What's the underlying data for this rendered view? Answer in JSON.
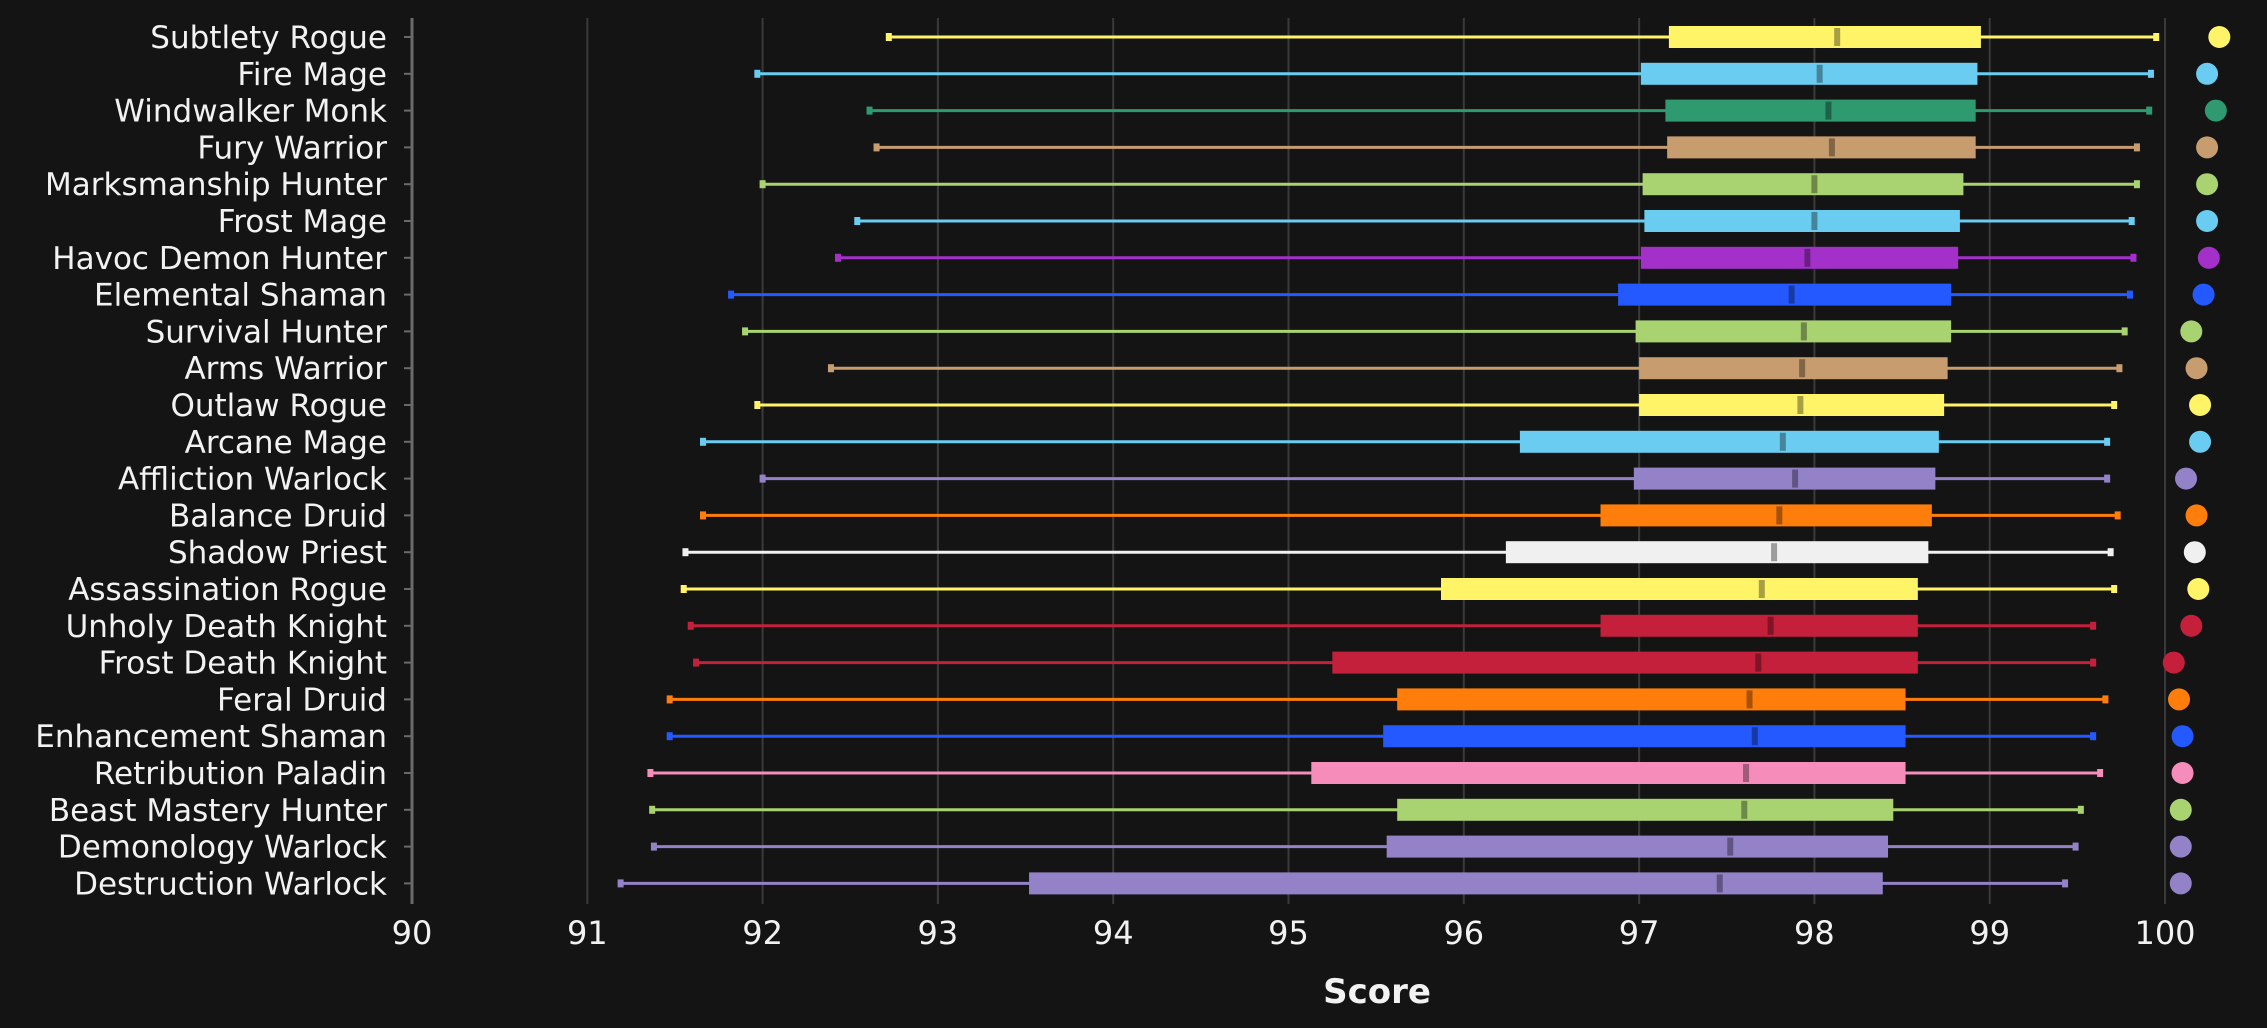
{
  "chart_data": {
    "type": "box",
    "orientation": "horizontal",
    "title": "",
    "xlabel": "Score",
    "ylabel": "",
    "xlim": [
      90,
      100
    ],
    "x_ticks": [
      "90",
      "91",
      "92",
      "93",
      "94",
      "95",
      "96",
      "97",
      "98",
      "99",
      "100"
    ],
    "grid": true,
    "background": "#141414",
    "categories": [
      "Subtlety Rogue",
      "Fire Mage",
      "Windwalker Monk",
      "Fury Warrior",
      "Marksmanship Hunter",
      "Frost Mage",
      "Havoc Demon Hunter",
      "Elemental Shaman",
      "Survival Hunter",
      "Arms Warrior",
      "Outlaw Rogue",
      "Arcane Mage",
      "Affliction Warlock",
      "Balance Druid",
      "Shadow Priest",
      "Assassination Rogue",
      "Unholy Death Knight",
      "Frost Death Knight",
      "Feral Druid",
      "Enhancement Shaman",
      "Retribution Paladin",
      "Beast Mastery Hunter",
      "Demonology Warlock",
      "Destruction Warlock"
    ],
    "series": [
      {
        "category": "Subtlety Rogue",
        "color": "#FFF468",
        "min": 92.72,
        "q1": 97.17,
        "median": 98.13,
        "q3": 98.95,
        "max": 99.95,
        "dot": 100.31
      },
      {
        "category": "Fire Mage",
        "color": "#69CCF0",
        "min": 91.97,
        "q1": 97.01,
        "median": 98.03,
        "q3": 98.93,
        "max": 99.92,
        "dot": 100.24
      },
      {
        "category": "Windwalker Monk",
        "color": "#2F9970",
        "min": 92.61,
        "q1": 97.15,
        "median": 98.08,
        "q3": 98.92,
        "max": 99.91,
        "dot": 100.29
      },
      {
        "category": "Fury Warrior",
        "color": "#C79C6E",
        "min": 92.65,
        "q1": 97.16,
        "median": 98.1,
        "q3": 98.92,
        "max": 99.84,
        "dot": 100.24
      },
      {
        "category": "Marksmanship Hunter",
        "color": "#A9D271",
        "min": 92.0,
        "q1": 97.02,
        "median": 98.0,
        "q3": 98.85,
        "max": 99.84,
        "dot": 100.24
      },
      {
        "category": "Frost Mage",
        "color": "#69CCF0",
        "min": 92.54,
        "q1": 97.03,
        "median": 98.0,
        "q3": 98.83,
        "max": 99.81,
        "dot": 100.24
      },
      {
        "category": "Havoc Demon Hunter",
        "color": "#A330C9",
        "min": 92.43,
        "q1": 97.01,
        "median": 97.96,
        "q3": 98.82,
        "max": 99.82,
        "dot": 100.25
      },
      {
        "category": "Elemental Shaman",
        "color": "#2459FF",
        "min": 91.82,
        "q1": 96.88,
        "median": 97.87,
        "q3": 98.78,
        "max": 99.8,
        "dot": 100.22
      },
      {
        "category": "Survival Hunter",
        "color": "#A9D271",
        "min": 91.9,
        "q1": 96.98,
        "median": 97.94,
        "q3": 98.78,
        "max": 99.77,
        "dot": 100.15
      },
      {
        "category": "Arms Warrior",
        "color": "#C79C6E",
        "min": 92.39,
        "q1": 97.0,
        "median": 97.93,
        "q3": 98.76,
        "max": 99.74,
        "dot": 100.18
      },
      {
        "category": "Outlaw Rogue",
        "color": "#FFF468",
        "min": 91.97,
        "q1": 97.0,
        "median": 97.92,
        "q3": 98.74,
        "max": 99.71,
        "dot": 100.2
      },
      {
        "category": "Arcane Mage",
        "color": "#69CCF0",
        "min": 91.66,
        "q1": 96.32,
        "median": 97.82,
        "q3": 98.71,
        "max": 99.67,
        "dot": 100.2
      },
      {
        "category": "Affliction Warlock",
        "color": "#9482C9",
        "min": 92.0,
        "q1": 96.97,
        "median": 97.89,
        "q3": 98.69,
        "max": 99.67,
        "dot": 100.12
      },
      {
        "category": "Balance Druid",
        "color": "#FF7D0A",
        "min": 91.66,
        "q1": 96.78,
        "median": 97.8,
        "q3": 98.67,
        "max": 99.73,
        "dot": 100.18
      },
      {
        "category": "Shadow Priest",
        "color": "#F0F0F0",
        "min": 91.56,
        "q1": 96.24,
        "median": 97.77,
        "q3": 98.65,
        "max": 99.69,
        "dot": 100.17
      },
      {
        "category": "Assassination Rogue",
        "color": "#FFF468",
        "min": 91.55,
        "q1": 95.87,
        "median": 97.7,
        "q3": 98.59,
        "max": 99.71,
        "dot": 100.19
      },
      {
        "category": "Unholy Death Knight",
        "color": "#C41F3B",
        "min": 91.59,
        "q1": 96.78,
        "median": 97.75,
        "q3": 98.59,
        "max": 99.59,
        "dot": 100.15
      },
      {
        "category": "Frost Death Knight",
        "color": "#C41F3B",
        "min": 91.62,
        "q1": 95.25,
        "median": 97.68,
        "q3": 98.59,
        "max": 99.59,
        "dot": 100.05
      },
      {
        "category": "Feral Druid",
        "color": "#FF7D0A",
        "min": 91.47,
        "q1": 95.62,
        "median": 97.63,
        "q3": 98.52,
        "max": 99.66,
        "dot": 100.08
      },
      {
        "category": "Enhancement Shaman",
        "color": "#2459FF",
        "min": 91.47,
        "q1": 95.54,
        "median": 97.66,
        "q3": 98.52,
        "max": 99.59,
        "dot": 100.1
      },
      {
        "category": "Retribution Paladin",
        "color": "#F58CBA",
        "min": 91.36,
        "q1": 95.13,
        "median": 97.61,
        "q3": 98.52,
        "max": 99.63,
        "dot": 100.1
      },
      {
        "category": "Beast Mastery Hunter",
        "color": "#A9D271",
        "min": 91.37,
        "q1": 95.62,
        "median": 97.6,
        "q3": 98.45,
        "max": 99.52,
        "dot": 100.09
      },
      {
        "category": "Demonology Warlock",
        "color": "#9482C9",
        "min": 91.38,
        "q1": 95.56,
        "median": 97.52,
        "q3": 98.42,
        "max": 99.49,
        "dot": 100.09
      },
      {
        "category": "Destruction Warlock",
        "color": "#9482C9",
        "min": 91.19,
        "q1": 93.52,
        "median": 97.46,
        "q3": 98.39,
        "max": 99.43,
        "dot": 100.09
      }
    ]
  }
}
